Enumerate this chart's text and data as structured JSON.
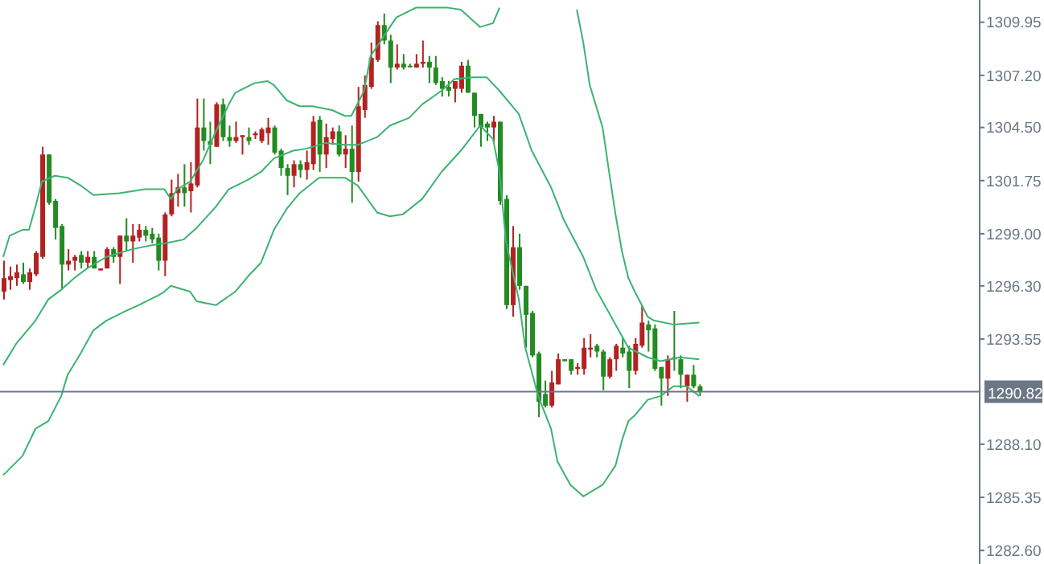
{
  "chart_data": {
    "type": "candlestick",
    "categories": [
      null,
      null,
      null,
      null,
      null,
      null,
      null,
      null,
      null,
      null,
      null,
      null,
      null,
      null,
      null,
      null,
      null,
      null,
      null,
      null,
      null,
      null,
      null,
      null,
      null,
      null,
      null,
      null,
      null,
      null,
      null,
      null,
      null,
      null,
      null,
      null,
      null,
      null,
      null,
      null,
      null,
      null,
      null,
      null,
      null,
      null,
      null,
      null,
      null,
      null,
      null,
      null,
      null,
      null,
      null,
      null,
      null,
      null,
      null,
      null,
      null,
      null,
      null,
      null,
      null,
      null,
      null,
      null,
      null,
      null,
      null,
      null,
      null,
      null,
      null,
      null,
      null,
      null,
      null,
      null,
      null,
      null,
      null,
      null,
      null,
      null,
      null,
      null,
      null,
      null,
      null,
      null,
      null,
      null,
      null,
      null,
      null,
      null,
      null,
      null,
      null,
      null,
      null,
      null,
      null,
      null,
      null,
      null,
      null,
      null,
      null,
      null,
      null,
      null,
      null,
      null,
      null,
      null,
      null,
      null,
      null,
      null,
      null,
      null,
      null,
      null,
      null,
      null,
      null,
      null,
      null,
      null,
      null,
      null,
      null,
      null,
      null,
      null,
      null,
      null,
      null,
      null,
      null,
      null,
      null,
      null,
      null,
      null,
      null,
      null,
      null,
      null
    ],
    "ohlc": [
      [
        1296.0,
        1297.6,
        1295.6,
        1296.7
      ],
      [
        1296.6,
        1297.3,
        1296.1,
        1296.8
      ],
      [
        1296.7,
        1297.4,
        1296.3,
        1297.0
      ],
      [
        1296.9,
        1297.5,
        1296.4,
        1296.5
      ],
      [
        1296.5,
        1297.2,
        1296.1,
        1297.0
      ],
      [
        1296.9,
        1298.1,
        1296.8,
        1298.0
      ],
      [
        1297.8,
        1303.5,
        1297.7,
        1303.1
      ],
      [
        1303.1,
        1303.1,
        1300.5,
        1300.6
      ],
      [
        1300.7,
        1300.8,
        1298.7,
        1299.3
      ],
      [
        1299.4,
        1299.5,
        1296.1,
        1297.4
      ],
      [
        1297.4,
        1298.2,
        1297.1,
        1297.6
      ],
      [
        1297.6,
        1297.9,
        1297.1,
        1297.8
      ],
      [
        1297.9,
        1298.1,
        1297.2,
        1297.5
      ],
      [
        1297.5,
        1298.1,
        1297.2,
        1297.8
      ],
      [
        1297.8,
        1298.1,
        1297.2,
        1297.2
      ],
      [
        1297.1,
        1297.2,
        1297.1,
        1297.2
      ],
      [
        1297.2,
        1298.3,
        1297.2,
        1298.2
      ],
      [
        1298.2,
        1298.3,
        1297.5,
        1297.8
      ],
      [
        1297.8,
        1298.9,
        1296.4,
        1298.9
      ],
      [
        1298.9,
        1299.8,
        1298.1,
        1298.6
      ],
      [
        1298.6,
        1299.5,
        1297.5,
        1298.9
      ],
      [
        1298.8,
        1299.5,
        1298.6,
        1299.2
      ],
      [
        1299.2,
        1299.4,
        1298.6,
        1298.9
      ],
      [
        1299.0,
        1299.3,
        1298.5,
        1298.7
      ],
      [
        1298.8,
        1299.0,
        1297.1,
        1297.6
      ],
      [
        1297.6,
        1300.1,
        1296.8,
        1300.0
      ],
      [
        1300.0,
        1301.8,
        1299.9,
        1301.1
      ],
      [
        1301.1,
        1302.1,
        1300.4,
        1301.4
      ],
      [
        1301.4,
        1302.6,
        1300.4,
        1301.1
      ],
      [
        1301.2,
        1302.7,
        1300.1,
        1301.6
      ],
      [
        1301.5,
        1306.0,
        1301.4,
        1304.5
      ],
      [
        1304.5,
        1306.0,
        1303.3,
        1303.8
      ],
      [
        1303.8,
        1304.8,
        1302.6,
        1303.6
      ],
      [
        1303.5,
        1305.8,
        1303.5,
        1305.7
      ],
      [
        1305.7,
        1306.0,
        1303.8,
        1304.0
      ],
      [
        1304.0,
        1304.6,
        1303.5,
        1303.8
      ],
      [
        1303.8,
        1304.8,
        1303.7,
        1304.0
      ],
      [
        1304.0,
        1304.1,
        1303.1,
        1304.1
      ],
      [
        1304.0,
        1304.5,
        1303.6,
        1303.8
      ],
      [
        1304.1,
        1304.3,
        1303.9,
        1304.2
      ],
      [
        1303.8,
        1304.5,
        1303.7,
        1304.4
      ],
      [
        1304.2,
        1305.0,
        1303.6,
        1304.5
      ],
      [
        1304.5,
        1304.6,
        1303.1,
        1303.2
      ],
      [
        1303.3,
        1303.4,
        1302.0,
        1302.4
      ],
      [
        1302.4,
        1302.6,
        1301.0,
        1302.0
      ],
      [
        1302.0,
        1302.8,
        1301.4,
        1302.6
      ],
      [
        1302.6,
        1302.8,
        1301.9,
        1302.3
      ],
      [
        1302.3,
        1303.3,
        1301.8,
        1302.7
      ],
      [
        1302.6,
        1305.1,
        1302.3,
        1304.8
      ],
      [
        1304.9,
        1305.1,
        1302.2,
        1303.1
      ],
      [
        1303.1,
        1304.7,
        1302.4,
        1304.0
      ],
      [
        1303.9,
        1304.5,
        1303.6,
        1304.3
      ],
      [
        1304.3,
        1304.6,
        1303.0,
        1303.1
      ],
      [
        1303.1,
        1304.1,
        1302.4,
        1303.4
      ],
      [
        1303.4,
        1304.6,
        1300.6,
        1302.2
      ],
      [
        1302.2,
        1306.6,
        1301.7,
        1305.6
      ],
      [
        1305.4,
        1307.2,
        1305.0,
        1306.7
      ],
      [
        1306.6,
        1308.9,
        1306.5,
        1308.1
      ],
      [
        1308.0,
        1310.0,
        1307.9,
        1309.8
      ],
      [
        1309.8,
        1310.4,
        1308.8,
        1309.0
      ],
      [
        1309.0,
        1309.3,
        1306.8,
        1307.6
      ],
      [
        1307.6,
        1308.8,
        1307.5,
        1307.8
      ],
      [
        1307.8,
        1308.3,
        1307.5,
        1307.6
      ],
      [
        1307.7,
        1307.8,
        1307.6,
        1307.7
      ],
      [
        1307.6,
        1308.3,
        1307.6,
        1307.8
      ],
      [
        1307.8,
        1309.0,
        1307.6,
        1307.9
      ],
      [
        1307.9,
        1308.2,
        1306.8,
        1307.6
      ],
      [
        1307.6,
        1308.2,
        1306.7,
        1306.8
      ],
      [
        1306.9,
        1307.1,
        1306.1,
        1306.5
      ],
      [
        1306.6,
        1306.9,
        1306.1,
        1306.4
      ],
      [
        1306.5,
        1306.9,
        1305.8,
        1306.9
      ],
      [
        1306.5,
        1307.9,
        1306.3,
        1307.7
      ],
      [
        1307.7,
        1308.0,
        1306.3,
        1306.3
      ],
      [
        1306.3,
        1306.3,
        1304.5,
        1305.1
      ],
      [
        1305.2,
        1305.2,
        1303.5,
        1304.5
      ],
      [
        1304.7,
        1304.8,
        1303.8,
        1304.5
      ],
      [
        1304.5,
        1305.1,
        1303.7,
        1304.8
      ],
      [
        1304.8,
        1304.8,
        1300.5,
        1300.7
      ],
      [
        1300.8,
        1301.0,
        1295.1,
        1295.3
      ],
      [
        1295.3,
        1299.4,
        1294.7,
        1298.3
      ],
      [
        1298.3,
        1299.0,
        1296.1,
        1296.3
      ],
      [
        1296.3,
        1296.3,
        1293.1,
        1294.8
      ],
      [
        1294.9,
        1295.0,
        1292.6,
        1292.7
      ],
      [
        1292.8,
        1292.9,
        1289.5,
        1290.3
      ],
      [
        1290.7,
        1291.4,
        1290.0,
        1290.1
      ],
      [
        1290.1,
        1291.9,
        1290.0,
        1291.3
      ],
      [
        1291.2,
        1292.8,
        1291.2,
        1292.5
      ],
      [
        1292.5,
        1292.5,
        1292.4,
        1292.4
      ],
      [
        1292.5,
        1292.5,
        1291.7,
        1291.9
      ],
      [
        1292.0,
        1292.3,
        1291.7,
        1292.1
      ],
      [
        1292.0,
        1293.6,
        1291.7,
        1293.1
      ],
      [
        1293.0,
        1293.8,
        1292.6,
        1293.1
      ],
      [
        1293.2,
        1293.3,
        1292.6,
        1292.9
      ],
      [
        1292.9,
        1293.0,
        1290.9,
        1291.6
      ],
      [
        1291.6,
        1292.6,
        1291.5,
        1292.5
      ],
      [
        1292.5,
        1293.3,
        1291.9,
        1293.2
      ],
      [
        1293.1,
        1293.6,
        1292.6,
        1292.8
      ],
      [
        1292.9,
        1293.2,
        1291.0,
        1291.9
      ],
      [
        1291.9,
        1293.6,
        1291.7,
        1293.3
      ],
      [
        1293.2,
        1295.3,
        1293.1,
        1294.4
      ],
      [
        1294.3,
        1294.5,
        1292.9,
        1294.0
      ],
      [
        1294.1,
        1294.3,
        1291.9,
        1292.0
      ],
      [
        1292.1,
        1292.1,
        1290.1,
        1291.5
      ],
      [
        1291.5,
        1292.7,
        1290.6,
        1292.5
      ],
      [
        1292.6,
        1295.0,
        1291.9,
        1292.5
      ],
      [
        1292.5,
        1292.7,
        1291.0,
        1291.7
      ],
      [
        1291.1,
        1291.7,
        1290.3,
        1291.7
      ],
      [
        1291.7,
        1292.2,
        1291.0,
        1291.1
      ],
      [
        1291.1,
        1291.2,
        1290.6,
        1290.8
      ],
      null,
      null,
      null,
      null,
      null,
      null,
      null,
      null,
      null,
      null,
      null,
      null,
      null,
      null,
      null,
      null,
      null,
      null,
      null,
      null,
      null,
      null,
      null,
      null,
      null,
      null,
      null,
      null,
      null,
      null,
      null,
      null,
      null,
      null,
      null,
      null,
      null,
      null,
      null,
      null,
      null,
      null,
      null
    ],
    "colors": [
      "#b22222",
      "#b22222",
      "#b22222",
      "#228b22",
      "#b22222",
      "#b22222",
      "#b22222",
      "#228b22",
      "#228b22",
      "#228b22",
      "#b22222",
      "#b22222",
      "#228b22",
      "#b22222",
      "#228b22",
      "#b22222",
      "#b22222",
      "#228b22",
      "#b22222",
      "#228b22",
      "#b22222",
      "#b22222",
      "#228b22",
      "#228b22",
      "#228b22",
      "#b22222",
      "#b22222",
      "#b22222",
      "#228b22",
      "#b22222",
      "#b22222",
      "#228b22",
      "#228b22",
      "#b22222",
      "#228b22",
      "#228b22",
      "#b22222",
      "#b22222",
      "#228b22",
      "#b22222",
      "#b22222",
      "#b22222",
      "#228b22",
      "#228b22",
      "#228b22",
      "#b22222",
      "#228b22",
      "#b22222",
      "#b22222",
      "#228b22",
      "#b22222",
      "#b22222",
      "#228b22",
      "#b22222",
      "#228b22",
      "#b22222",
      "#b22222",
      "#b22222",
      "#b22222",
      "#228b22",
      "#228b22",
      "#b22222",
      "#228b22",
      "#228b22",
      "#b22222",
      "#b22222",
      "#228b22",
      "#228b22",
      "#228b22",
      "#228b22",
      "#b22222",
      "#b22222",
      "#228b22",
      "#228b22",
      "#228b22",
      "#228b22",
      "#b22222",
      "#228b22",
      "#228b22",
      "#b22222",
      "#228b22",
      "#228b22",
      "#228b22",
      "#228b22",
      "#228b22",
      "#b22222",
      "#b22222",
      "#228b22",
      "#228b22",
      "#b22222",
      "#b22222",
      "#b22222",
      "#228b22",
      "#228b22",
      "#b22222",
      "#b22222",
      "#228b22",
      "#228b22",
      "#b22222",
      "#b22222",
      "#228b22",
      "#228b22",
      "#228b22",
      "#b22222",
      "#228b22",
      "#228b22",
      "#b22222",
      "#228b22",
      "#228b22",
      null,
      null,
      null,
      null,
      null,
      null,
      null,
      null,
      null,
      null,
      null,
      null,
      null,
      null,
      null,
      null,
      null,
      null,
      null,
      null,
      null,
      null,
      null,
      null,
      null,
      null,
      null,
      null,
      null,
      null,
      null,
      null,
      null,
      null,
      null,
      null,
      null,
      null,
      null,
      null,
      null,
      null,
      null
    ],
    "series": [
      {
        "type": "line",
        "color": "#3cb371",
        "values": [
          1297.8,
          1298.9,
          null,
          1299.2,
          1299.2,
          1300.4,
          1301.7,
          null,
          1302.0,
          null,
          1301.9,
          null,
          1301.5,
          null,
          1301.0,
          null,
          null,
          null,
          1301.1,
          null,
          null,
          null,
          1301.3,
          null,
          null,
          1301.3,
          1300.8,
          1301.3,
          null,
          1301.7,
          null,
          1302.8,
          null,
          1304.3,
          null,
          1305.7,
          1306.3,
          null,
          null,
          1306.8,
          null,
          1306.9,
          1306.7,
          null,
          1305.9,
          null,
          1305.6,
          null,
          1305.6,
          null,
          null,
          1305.4,
          null,
          1305.1,
          1305.1,
          null,
          1306.4,
          1308.2,
          null,
          1309.2,
          null,
          1310.2,
          null,
          null,
          1310.7,
          null,
          1310.7,
          null,
          null,
          1310.7,
          null,
          1310.6,
          null,
          null,
          1309.7,
          null,
          1309.9,
          1310.7,
          null,
          null,
          null,
          null,
          null,
          null,
          null,
          null,
          null,
          null,
          null,
          null,
          null,
          null,
          null,
          null,
          null,
          null,
          null,
          null,
          null,
          null,
          null,
          null,
          null,
          null,
          null,
          null,
          null,
          null,
          null,
          null,
          null,
          null,
          null,
          null,
          null,
          null,
          null,
          null,
          null,
          null,
          null,
          null,
          null,
          null,
          null,
          null,
          null,
          null,
          null,
          null,
          null,
          null,
          null,
          null,
          null,
          null,
          null,
          null,
          null,
          null,
          null,
          null,
          null,
          null,
          null,
          null,
          null,
          null,
          null,
          null,
          null,
          null
        ]
      },
      {
        "type": "line",
        "color": "#3cb371",
        "values": [
          null,
          null,
          null,
          null,
          null,
          null,
          null,
          null,
          null,
          null,
          null,
          null,
          null,
          null,
          null,
          null,
          null,
          null,
          null,
          null,
          null,
          null,
          null,
          null,
          null,
          null,
          null,
          null,
          null,
          null,
          null,
          null,
          null,
          null,
          null,
          null,
          null,
          null,
          null,
          null,
          null,
          null,
          null,
          null,
          null,
          null,
          null,
          null,
          null,
          null,
          null,
          null,
          null,
          null,
          null,
          null,
          null,
          null,
          null,
          null,
          null,
          null,
          null,
          null,
          null,
          null,
          null,
          null,
          null,
          null,
          null,
          null,
          null,
          null,
          null,
          null,
          null,
          null,
          null,
          null,
          null,
          null,
          null,
          null,
          null,
          null,
          null,
          null,
          null,
          1310.6,
          1308.9,
          1306.7,
          null,
          1304.5,
          1302.2,
          1300.0,
          1298.1,
          1296.7,
          1296.0,
          null,
          1294.7,
          1294.5,
          null,
          null,
          1294.3,
          null,
          null,
          null,
          1294.4,
          null,
          null,
          null,
          null,
          null,
          null,
          null,
          null,
          null,
          null,
          null,
          null,
          null,
          null,
          null,
          null,
          null,
          null,
          null,
          null,
          null,
          null,
          null,
          null,
          null,
          null,
          null,
          null,
          null,
          null,
          null,
          null,
          null,
          null,
          null,
          null,
          null,
          null,
          null,
          null,
          null,
          null,
          null
        ]
      },
      {
        "type": "line",
        "color": "#3cb371",
        "values": [
          1292.2,
          null,
          1293.3,
          null,
          null,
          1294.5,
          null,
          1295.6,
          null,
          1296.1,
          null,
          1296.7,
          null,
          1297.2,
          null,
          null,
          1297.8,
          null,
          null,
          null,
          1298.2,
          null,
          null,
          1298.4,
          null,
          1298.5,
          null,
          null,
          1298.7,
          null,
          1299.3,
          null,
          null,
          1300.4,
          null,
          1301.3,
          null,
          null,
          1301.8,
          null,
          1302.2,
          null,
          1302.9,
          null,
          null,
          1303.3,
          null,
          1303.4,
          null,
          null,
          1303.7,
          null,
          null,
          1303.6,
          null,
          1303.6,
          null,
          null,
          1304.0,
          null,
          1304.6,
          null,
          null,
          1305.0,
          null,
          1305.7,
          null,
          null,
          1306.4,
          null,
          1307.0,
          null,
          null,
          1307.1,
          null,
          1307.1,
          null,
          1306.4,
          null,
          null,
          1305.2,
          null,
          1303.3,
          null,
          null,
          1301.4,
          null,
          1299.7,
          null,
          null,
          1297.8,
          null,
          1296.1,
          null,
          null,
          1294.3,
          null,
          1293.1,
          null,
          null,
          1292.6,
          null,
          1292.4,
          null,
          null,
          1292.6,
          null,
          null,
          1292.5,
          null,
          null,
          null,
          null,
          null,
          null,
          null,
          null,
          null,
          null,
          null,
          null,
          null,
          null,
          null,
          null,
          null,
          null,
          null,
          null,
          null,
          null,
          null,
          null,
          null,
          null,
          null,
          null,
          null,
          null,
          null,
          null,
          null,
          null,
          null,
          null,
          null,
          null,
          null,
          null,
          null,
          null,
          null
        ]
      },
      {
        "type": "line",
        "color": "#3cb371",
        "values": [
          1286.5,
          null,
          null,
          1287.5,
          null,
          1288.9,
          null,
          1289.3,
          null,
          1290.6,
          1291.7,
          null,
          1292.8,
          null,
          1294.0,
          null,
          1294.5,
          null,
          null,
          1295.0,
          null,
          1295.3,
          null,
          null,
          1295.8,
          1296.0,
          1296.3,
          null,
          null,
          1296.0,
          1295.5,
          null,
          null,
          1295.3,
          null,
          null,
          1296.0,
          null,
          1296.8,
          null,
          1297.5,
          null,
          1299.2,
          null,
          1300.3,
          null,
          1301.1,
          null,
          null,
          1301.9,
          null,
          null,
          null,
          1301.9,
          null,
          1301.5,
          null,
          null,
          1300.1,
          null,
          1299.9,
          null,
          1300.0,
          null,
          null,
          1300.8,
          null,
          null,
          1302.2,
          null,
          null,
          1303.3,
          null,
          null,
          1304.6,
          null,
          1303.9,
          1302.2,
          1298.6,
          null,
          1295.6,
          1293.1,
          null,
          1290.6,
          null,
          1288.9,
          1287.2,
          null,
          1286.0,
          null,
          1285.4,
          null,
          null,
          1286.0,
          null,
          1287.0,
          1288.3,
          1289.3,
          1289.6,
          null,
          1290.4,
          null,
          1290.6,
          null,
          1291.1,
          null,
          1291.1,
          null,
          1290.6,
          null,
          null,
          null,
          null,
          null,
          null,
          null,
          null,
          null,
          null,
          null,
          null,
          null,
          null,
          null,
          null,
          null,
          null,
          null,
          null,
          null,
          null,
          null,
          null,
          null,
          null,
          null,
          null,
          null,
          null,
          null,
          null,
          null,
          null,
          null,
          null,
          null,
          null,
          null,
          null,
          null,
          null,
          null
        ]
      }
    ],
    "ylim": [
      1281.9,
      1311.1
    ],
    "yticks": [
      1309.95,
      {
        "value": 1307.2,
        "label": "1307.20"
      },
      {
        "value": 1304.5,
        "label": "1304.50"
      },
      1301.75,
      {
        "value": 1299.0,
        "label": "1299.00"
      },
      {
        "value": 1296.3,
        "label": "1296.30"
      },
      1293.55,
      {
        "value": 1288.1,
        "label": "1288.10"
      },
      1285.35,
      {
        "value": 1282.6,
        "label": "1282.60"
      }
    ],
    "ref_lines": [
      {
        "axis": "y",
        "value": 1290.82,
        "label": "1290.82",
        "color": "#6b7785"
      }
    ],
    "tick_labels": "y"
  }
}
